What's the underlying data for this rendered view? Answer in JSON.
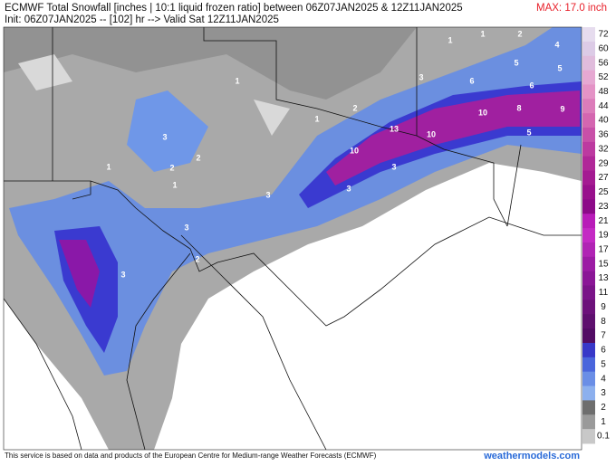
{
  "header": {
    "title": "ECMWF Total Snowfall [inches | 10:1 liquid frozen ratio] between 06Z07JAN2025 & 12Z11JAN2025",
    "subtitle": "Init: 06Z07JAN2025 -- [102] hr --> Valid Sat 12Z11JAN2025",
    "max_label": "MAX: 17.0 inch"
  },
  "map": {
    "contour_labels": [
      "1",
      "1",
      "2",
      "4",
      "5",
      "5",
      "3",
      "6",
      "6",
      "1",
      "2",
      "10",
      "8",
      "9",
      "1",
      "13",
      "10",
      "5",
      "3",
      "10",
      "2",
      "2",
      "1",
      "3",
      "1",
      "3",
      "3",
      "3",
      "2",
      "3"
    ]
  },
  "colorbar": {
    "labels": [
      "72",
      "60",
      "56",
      "52",
      "48",
      "44",
      "40",
      "36",
      "32",
      "29",
      "27",
      "25",
      "23",
      "21",
      "19",
      "17",
      "15",
      "13",
      "11",
      "9",
      "8",
      "7",
      "6",
      "5",
      "4",
      "3",
      "2",
      "1",
      "0.1"
    ]
  },
  "footer": {
    "credit": "This service is based on data and products of the European Centre for Medium-range Weather Forecasts (ECMWF)",
    "brand": "weathermodels.com"
  }
}
